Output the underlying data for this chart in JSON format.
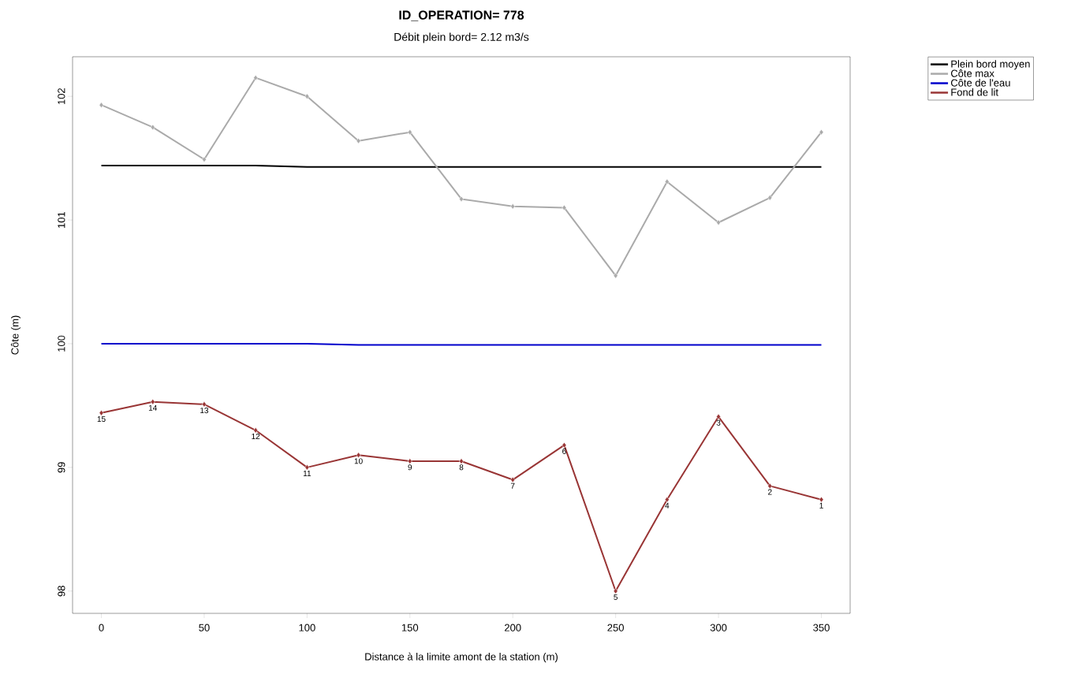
{
  "chart_data": {
    "type": "line",
    "title": "ID_OPERATION= 778",
    "subtitle": "Débit plein bord= 2.12 m3/s",
    "xlabel": "Distance à la limite amont de la station (m)",
    "ylabel": "Côte (m)",
    "x": [
      0,
      25,
      50,
      75,
      100,
      125,
      150,
      175,
      200,
      225,
      250,
      275,
      300,
      325,
      350
    ],
    "series": [
      {
        "name": "Plein bord moyen",
        "color": "#000000",
        "marker": "none",
        "values": [
          101.44,
          101.44,
          101.44,
          101.44,
          101.43,
          101.43,
          101.43,
          101.43,
          101.43,
          101.43,
          101.43,
          101.43,
          101.43,
          101.43,
          101.43
        ]
      },
      {
        "name": "Côte max",
        "color": "#aaaaaa",
        "marker": "diamond",
        "values": [
          101.93,
          101.75,
          101.49,
          102.15,
          102.0,
          101.64,
          101.71,
          101.17,
          101.11,
          101.1,
          100.55,
          101.31,
          100.98,
          101.18,
          101.71
        ]
      },
      {
        "name": "Côte de l'eau",
        "color": "#0000cc",
        "marker": "none",
        "values": [
          100.0,
          100.0,
          100.0,
          100.0,
          100.0,
          99.99,
          99.99,
          99.99,
          99.99,
          99.99,
          99.99,
          99.99,
          99.99,
          99.99,
          99.99
        ]
      },
      {
        "name": "Fond de lit",
        "color": "#993535",
        "marker": "diamond",
        "values": [
          99.44,
          99.53,
          99.51,
          99.3,
          99.0,
          99.1,
          99.05,
          99.05,
          98.9,
          99.18,
          98.0,
          98.74,
          99.41,
          98.85,
          98.74
        ]
      }
    ],
    "annotations": [
      {
        "text": "15",
        "x": 0,
        "y": 99.44
      },
      {
        "text": "14",
        "x": 25,
        "y": 99.53
      },
      {
        "text": "13",
        "x": 50,
        "y": 99.51
      },
      {
        "text": "12",
        "x": 75,
        "y": 99.3
      },
      {
        "text": "11",
        "x": 100,
        "y": 99.0
      },
      {
        "text": "10",
        "x": 125,
        "y": 99.1
      },
      {
        "text": "9",
        "x": 150,
        "y": 99.05
      },
      {
        "text": "8",
        "x": 175,
        "y": 99.05
      },
      {
        "text": "7",
        "x": 200,
        "y": 98.9
      },
      {
        "text": "6",
        "x": 225,
        "y": 99.18
      },
      {
        "text": "5",
        "x": 250,
        "y": 98.0
      },
      {
        "text": "4",
        "x": 275,
        "y": 98.74
      },
      {
        "text": "3",
        "x": 300,
        "y": 99.41
      },
      {
        "text": "2",
        "x": 325,
        "y": 98.85
      },
      {
        "text": "1",
        "x": 350,
        "y": 98.74
      }
    ],
    "xlim": [
      -14,
      364
    ],
    "ylim": [
      97.82,
      102.32
    ],
    "xticks": [
      0,
      50,
      100,
      150,
      200,
      250,
      300,
      350
    ],
    "yticks": [
      98,
      99,
      100,
      101,
      102
    ],
    "grid": false,
    "legend": "top right"
  }
}
